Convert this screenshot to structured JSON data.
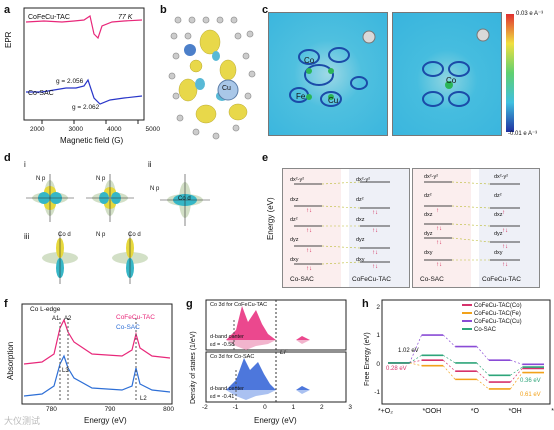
{
  "panels": {
    "a": {
      "label": "a",
      "ylabel": "EPR",
      "xlabel": "Magnetic field (G)",
      "temp": "77 K",
      "series1_name": "CoFeCu-TAC",
      "series2_name": "Co-SAC",
      "g1": "g = 2.056",
      "g2": "g = 2.062",
      "xticks": [
        "2000",
        "3000",
        "4000",
        "5000"
      ],
      "colors": {
        "top": "#e8287a",
        "bottom": "#2936c9"
      }
    },
    "b": {
      "label": "b",
      "atom": "Cu"
    },
    "c": {
      "label": "c",
      "atoms_left": [
        "Co",
        "Fe",
        "Cu"
      ],
      "atom_right": "Co",
      "colorbar_max": "0.03 e A⁻³",
      "colorbar_min": "-0.01 e A⁻³"
    },
    "d": {
      "label": "d",
      "subpanels": [
        "i",
        "ii",
        "iii"
      ],
      "orbitals": [
        "N p",
        "N p",
        "Co d",
        "N p",
        "Co d",
        "N p",
        "Co d"
      ],
      "axes": [
        "y",
        "x",
        "z",
        "x",
        "y",
        "z",
        "y",
        "x"
      ]
    },
    "e": {
      "label": "e",
      "ylabel": "Energy (eV)",
      "left_names": [
        "Co-SAC",
        "CoFeCu-TAC"
      ],
      "right_names": [
        "Co-SAC",
        "CoFeCu-TAC"
      ],
      "levels_left": [
        "dx²-y²",
        "dxz",
        "dz²",
        "dyz",
        "dxy"
      ],
      "levels_right_tac": [
        "dx²-y²",
        "dz²",
        "dxz",
        "dyz",
        "dxy"
      ],
      "levels_right_sac": [
        "dx²-y²",
        "dz²",
        "dxz",
        "dyz",
        "dxy"
      ],
      "levels_far_right": [
        "dx²-y²",
        "dz²",
        "dxz",
        "dyz",
        "dxy"
      ],
      "levels_far_left": [
        "dx²-y²",
        "dz²",
        "dxz",
        "dyz",
        "dxy"
      ]
    },
    "f": {
      "label": "f",
      "ylabel": "Absorption",
      "xlabel": "Energy (eV)",
      "title": "Co L-edge",
      "series1_name": "CoFeCu-TAC",
      "series2_name": "Co-SAC",
      "edge_labels": [
        "A1",
        "A2",
        "L3",
        "L2"
      ],
      "xticks": [
        "780",
        "790",
        "800"
      ],
      "colors": {
        "top": "#e8287a",
        "bottom": "#2e6fd6"
      }
    },
    "g": {
      "label": "g",
      "ylabel": "Density of states (1/eV)",
      "xlabel": "Energy (eV)",
      "title_top": "Co 3d for CoFeCu-TAC",
      "title_bottom": "Co 3d for Co-SAC",
      "center_top": "d-band center",
      "val_top": "εd = -0.58",
      "center_bottom": "d-band center",
      "val_bottom": "εd = -0.41",
      "ef": "EF",
      "xticks": [
        "-2",
        "-1",
        "0",
        "1",
        "2",
        "3"
      ]
    },
    "h": {
      "label": "h",
      "ylabel": "Free Energy (eV)",
      "xcats": [
        "*+O₂",
        "*OOH",
        "*O",
        "*OH",
        "*"
      ],
      "yticks": [
        "2",
        "1",
        "0",
        "-1"
      ],
      "legend": [
        "CoFeCu-TAC(Co)",
        "CoFeCu-TAC(Fe)",
        "CoFeCu-TAC(Cu)",
        "Co-SAC"
      ],
      "legend_colors": [
        "#d6336c",
        "#f2a21a",
        "#8a4bd6",
        "#2ea57a"
      ],
      "annotations": [
        "1.02 eV",
        "0.28 eV",
        "0.36 eV",
        "0.61 eV"
      ],
      "chart_data": {
        "type": "line",
        "categories": [
          "*+O2",
          "*OOH",
          "*O",
          "*OH",
          "*"
        ],
        "series": [
          {
            "name": "CoFeCu-TAC(Co)",
            "values": [
              0,
              0.1,
              -0.3,
              -0.7,
              -0.2
            ]
          },
          {
            "name": "CoFeCu-TAC(Fe)",
            "values": [
              0,
              -0.1,
              -0.6,
              -0.95,
              -0.35
            ]
          },
          {
            "name": "CoFeCu-TAC(Cu)",
            "values": [
              0,
              1.02,
              0.6,
              0.1,
              -0.05
            ]
          },
          {
            "name": "Co-SAC",
            "values": [
              0,
              0.28,
              0.0,
              -0.45,
              -0.15
            ]
          }
        ],
        "ylim": [
          -1.5,
          2.3
        ]
      }
    }
  },
  "watermark": "大仪测试"
}
